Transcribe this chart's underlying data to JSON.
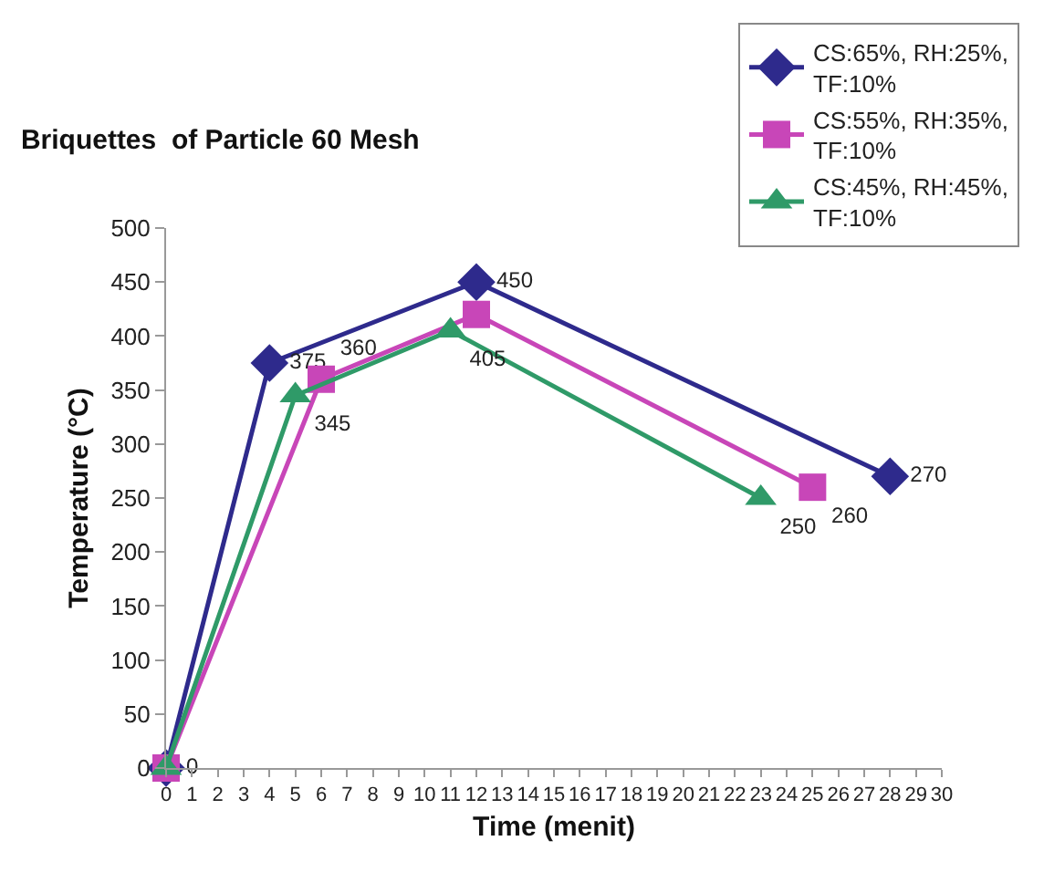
{
  "chart_data": {
    "type": "line",
    "title": "Briquettes  of Particle 60 Mesh",
    "xlabel": "Time (menit)",
    "ylabel": "Temperature (°C)",
    "xlim": [
      0,
      30
    ],
    "xticks": [
      0,
      1,
      2,
      3,
      4,
      5,
      6,
      7,
      8,
      9,
      10,
      11,
      12,
      13,
      14,
      15,
      16,
      17,
      18,
      19,
      20,
      21,
      22,
      23,
      24,
      25,
      26,
      27,
      28,
      29,
      30
    ],
    "ylim": [
      0,
      500
    ],
    "yticks": [
      0,
      50,
      100,
      150,
      200,
      250,
      300,
      350,
      400,
      450,
      500
    ],
    "grid": false,
    "legend": "top right",
    "line_style": "solid",
    "series": [
      {
        "name": "CS:65%, RH:25%, TF:10%",
        "color": "#2e2a8c",
        "marker": "diamond",
        "x": [
          0,
          4,
          12,
          28
        ],
        "values": [
          0,
          375,
          450,
          270
        ],
        "value_labels": [
          "0",
          "375",
          "450",
          "270"
        ]
      },
      {
        "name": "CS:55%, RH:35%, TF:10%",
        "color": "#c846b8",
        "marker": "square",
        "x": [
          0,
          6,
          12,
          25
        ],
        "values": [
          0,
          360,
          420,
          260
        ],
        "value_labels": [
          null,
          "360",
          null,
          "260"
        ]
      },
      {
        "name": "CS:45%, RH:45%, TF:10%",
        "color": "#2f9a68",
        "marker": "triangle",
        "x": [
          0,
          5,
          11,
          23
        ],
        "values": [
          0,
          345,
          405,
          250
        ],
        "value_labels": [
          null,
          "345",
          "405",
          "250"
        ]
      }
    ]
  }
}
